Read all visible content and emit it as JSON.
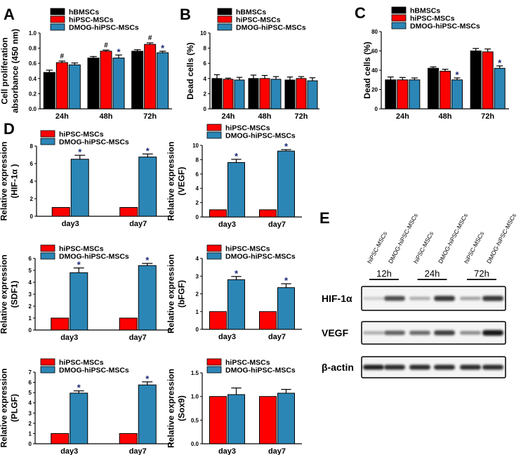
{
  "colors": {
    "hBMSCs": "#000000",
    "hiPSC-MSCs": "#ff0000",
    "DMOG-hiPSC-MSCs": "#2b86b6",
    "star": "#1c2a78",
    "hash": "#000000"
  },
  "chart_data": [
    {
      "panel": "A",
      "type": "bar",
      "ylabel": [
        "Cell proliferation",
        "absorbance (450 nm)"
      ],
      "categories": [
        "24h",
        "48h",
        "72h"
      ],
      "ylim": [
        0,
        1.0
      ],
      "yticks": [
        0,
        0.2,
        0.4,
        0.6,
        0.8,
        1.0
      ],
      "ytick_labels": [
        "0.0",
        "0.2",
        "0.4",
        "0.6",
        "0.8",
        "1.0"
      ],
      "series": [
        {
          "name": "hBMSCs",
          "values": [
            0.48,
            0.67,
            0.76
          ],
          "errors": [
            0.03,
            0.02,
            0.02
          ],
          "marks": [
            "",
            "",
            ""
          ]
        },
        {
          "name": "hiPSC-MSCs",
          "values": [
            0.61,
            0.76,
            0.85
          ],
          "errors": [
            0.02,
            0.015,
            0.02
          ],
          "marks": [
            "#",
            "#",
            "#"
          ]
        },
        {
          "name": "DMOG-hiPSC-MSCs",
          "values": [
            0.58,
            0.67,
            0.74
          ],
          "errors": [
            0.025,
            0.04,
            0.02
          ],
          "marks": [
            "",
            "*",
            "*"
          ]
        }
      ]
    },
    {
      "panel": "B",
      "type": "bar",
      "ylabel": [
        "Dead cells (%)"
      ],
      "categories": [
        "24h",
        "48h",
        "72h"
      ],
      "ylim": [
        0,
        10
      ],
      "yticks": [
        0,
        2,
        4,
        6,
        8,
        10
      ],
      "ytick_labels": [
        "0",
        "2",
        "4",
        "6",
        "8",
        "10"
      ],
      "series": [
        {
          "name": "hBMSCs",
          "values": [
            4.0,
            4.0,
            3.8
          ],
          "errors": [
            0.5,
            0.45,
            0.4
          ],
          "marks": [
            "",
            "",
            ""
          ]
        },
        {
          "name": "hiPSC-MSCs",
          "values": [
            3.9,
            4.0,
            4.0
          ],
          "errors": [
            0.15,
            0.4,
            0.25
          ],
          "marks": [
            "",
            "",
            ""
          ]
        },
        {
          "name": "DMOG-hiPSC-MSCs",
          "values": [
            3.8,
            3.9,
            3.7
          ],
          "errors": [
            0.35,
            0.35,
            0.4
          ],
          "marks": [
            "",
            "",
            ""
          ]
        }
      ]
    },
    {
      "panel": "C",
      "type": "bar",
      "ylabel": [
        "Dead cells (%)"
      ],
      "categories": [
        "24h",
        "48h",
        "72h"
      ],
      "ylim": [
        0,
        80
      ],
      "yticks": [
        0,
        20,
        40,
        60,
        80
      ],
      "ytick_labels": [
        "0",
        "20",
        "40",
        "60",
        "80"
      ],
      "series": [
        {
          "name": "hBMSCs",
          "values": [
            30,
            42,
            60
          ],
          "errors": [
            3,
            1.5,
            2.5
          ],
          "marks": [
            "",
            "",
            ""
          ]
        },
        {
          "name": "hiPSC-MSCs",
          "values": [
            30,
            39,
            59
          ],
          "errors": [
            2.5,
            2,
            3
          ],
          "marks": [
            "",
            "",
            ""
          ]
        },
        {
          "name": "DMOG-hiPSC-MSCs",
          "values": [
            30,
            30,
            42
          ],
          "errors": [
            2,
            2,
            2.5
          ],
          "marks": [
            "",
            "*",
            "*"
          ]
        }
      ]
    },
    {
      "panel": "D",
      "type": "bar",
      "ylabel": [
        "Relative expression",
        "(HIF-1α )"
      ],
      "categories": [
        "day3",
        "day7"
      ],
      "ylim": [
        0,
        8
      ],
      "yticks": [
        0,
        2,
        4,
        6,
        8
      ],
      "ytick_labels": [
        "0",
        "2",
        "4",
        "6",
        "8"
      ],
      "series": [
        {
          "name": "hiPSC-MSCs",
          "values": [
            1,
            1
          ],
          "errors": [
            0,
            0
          ],
          "marks": [
            "",
            ""
          ]
        },
        {
          "name": "DMOG-hiPSC-MSCs",
          "values": [
            6.5,
            6.75
          ],
          "errors": [
            0.45,
            0.35
          ],
          "marks": [
            "*",
            "*"
          ]
        }
      ]
    },
    {
      "panel": "",
      "type": "bar",
      "ylabel": [
        "Relative expression",
        "(VEGF)"
      ],
      "categories": [
        "day3",
        "day7"
      ],
      "ylim": [
        0,
        10
      ],
      "yticks": [
        0,
        2,
        4,
        6,
        8,
        10
      ],
      "ytick_labels": [
        "0",
        "2",
        "4",
        "6",
        "8",
        "10"
      ],
      "series": [
        {
          "name": "hiPSC-MSCs",
          "values": [
            1,
            1
          ],
          "errors": [
            0,
            0
          ],
          "marks": [
            "",
            ""
          ]
        },
        {
          "name": "DMOG-hiPSC-MSCs",
          "values": [
            7.6,
            9.2
          ],
          "errors": [
            0.45,
            0.2
          ],
          "marks": [
            "*",
            "*"
          ]
        }
      ]
    },
    {
      "panel": "",
      "type": "bar",
      "ylabel": [
        "Relative expression",
        "(SDF1)"
      ],
      "categories": [
        "day3",
        "day7"
      ],
      "ylim": [
        0,
        6
      ],
      "yticks": [
        0,
        1,
        2,
        3,
        4,
        5,
        6
      ],
      "ytick_labels": [
        "0",
        "1",
        "2",
        "3",
        "4",
        "5",
        "6"
      ],
      "series": [
        {
          "name": "hiPSC-MSCs",
          "values": [
            1,
            1
          ],
          "errors": [
            0,
            0
          ],
          "marks": [
            "",
            ""
          ]
        },
        {
          "name": "DMOG-hiPSC-MSCs",
          "values": [
            4.8,
            5.4
          ],
          "errors": [
            0.4,
            0.18
          ],
          "marks": [
            "*",
            "*"
          ]
        }
      ]
    },
    {
      "panel": "",
      "type": "bar",
      "ylabel": [
        "Relative expression",
        "(bFGF)"
      ],
      "categories": [
        "day3",
        "day7"
      ],
      "ylim": [
        0,
        4
      ],
      "yticks": [
        0,
        1,
        2,
        3,
        4
      ],
      "ytick_labels": [
        "0",
        "1",
        "2",
        "3",
        "4"
      ],
      "series": [
        {
          "name": "hiPSC-MSCs",
          "values": [
            1,
            1
          ],
          "errors": [
            0,
            0
          ],
          "marks": [
            "",
            ""
          ]
        },
        {
          "name": "DMOG-hiPSC-MSCs",
          "values": [
            2.8,
            2.35
          ],
          "errors": [
            0.18,
            0.22
          ],
          "marks": [
            "*",
            "*"
          ]
        }
      ]
    },
    {
      "panel": "",
      "type": "bar",
      "ylabel": [
        "Relative expression",
        "(PLGF)"
      ],
      "categories": [
        "day3",
        "day7"
      ],
      "ylim": [
        0,
        7
      ],
      "yticks": [
        0,
        1,
        2,
        3,
        4,
        5,
        6,
        7
      ],
      "ytick_labels": [
        "0",
        "1",
        "2",
        "3",
        "4",
        "5",
        "6",
        "7"
      ],
      "series": [
        {
          "name": "hiPSC-MSCs",
          "values": [
            1,
            1
          ],
          "errors": [
            0,
            0
          ],
          "marks": [
            "",
            ""
          ]
        },
        {
          "name": "DMOG-hiPSC-MSCs",
          "values": [
            4.95,
            5.75
          ],
          "errors": [
            0.22,
            0.3
          ],
          "marks": [
            "*",
            "*"
          ]
        }
      ]
    },
    {
      "panel": "",
      "type": "bar",
      "ylabel": [
        "Relative expression",
        "(Sox9)"
      ],
      "categories": [
        "day3",
        "day7"
      ],
      "ylim": [
        0,
        1.5
      ],
      "yticks": [
        0,
        0.5,
        1.0,
        1.5
      ],
      "ytick_labels": [
        "0.0",
        "0.5",
        "1.0",
        "1.5"
      ],
      "series": [
        {
          "name": "hiPSC-MSCs",
          "values": [
            1,
            1
          ],
          "errors": [
            0,
            0
          ],
          "marks": [
            "",
            ""
          ]
        },
        {
          "name": "DMOG-hiPSC-MSCs",
          "values": [
            1.04,
            1.07
          ],
          "errors": [
            0.14,
            0.08
          ],
          "marks": [
            "",
            ""
          ]
        }
      ]
    }
  ],
  "western_blot": {
    "panel": "E",
    "lanes": [
      "hiPSC-MSCs",
      "DMOG-hiPSC-MSCs",
      "hiPSC-MSCs",
      "DMOG-hiPSC-MSCs",
      "hiPSC-MSCs",
      "DMOG-hiPSC-MSCs"
    ],
    "groups": [
      "12h",
      "24h",
      "72h"
    ],
    "rows": [
      {
        "label": "HIF-1α",
        "intensity": [
          0.15,
          0.75,
          0.3,
          0.85,
          0.35,
          0.85
        ]
      },
      {
        "label": "VEGF",
        "intensity": [
          0.3,
          0.65,
          0.6,
          0.8,
          0.45,
          1.0
        ]
      },
      {
        "label": "β-actin",
        "intensity": [
          0.95,
          0.9,
          0.9,
          0.9,
          0.9,
          0.9
        ]
      }
    ]
  }
}
